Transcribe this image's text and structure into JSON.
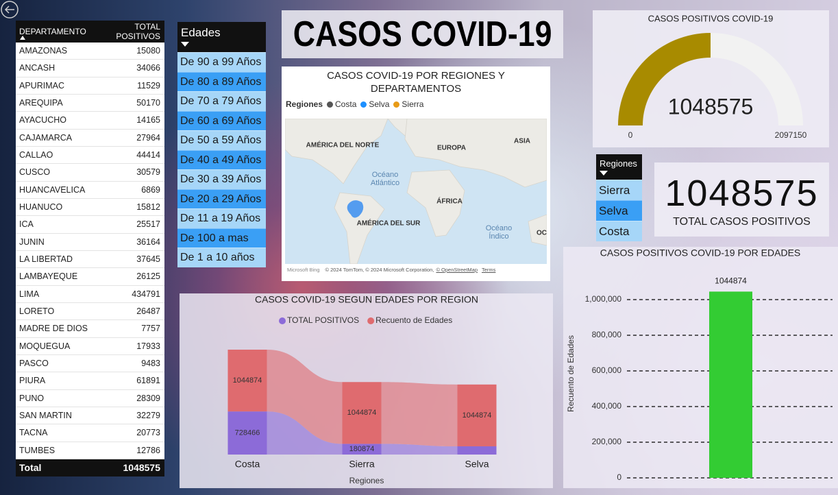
{
  "title": "CASOS COVID-19",
  "table": {
    "columns": [
      "DEPARTAMENTO",
      "TOTAL POSITIVOS"
    ],
    "rows": [
      [
        "AMAZONAS",
        15080
      ],
      [
        "ANCASH",
        34066
      ],
      [
        "APURIMAC",
        11529
      ],
      [
        "AREQUIPA",
        50170
      ],
      [
        "AYACUCHO",
        14165
      ],
      [
        "CAJAMARCA",
        27964
      ],
      [
        "CALLAO",
        44414
      ],
      [
        "CUSCO",
        30579
      ],
      [
        "HUANCAVELICA",
        6869
      ],
      [
        "HUANUCO",
        15812
      ],
      [
        "ICA",
        25517
      ],
      [
        "JUNIN",
        36164
      ],
      [
        "LA LIBERTAD",
        37645
      ],
      [
        "LAMBAYEQUE",
        26125
      ],
      [
        "LIMA",
        434791
      ],
      [
        "LORETO",
        26487
      ],
      [
        "MADRE DE DIOS",
        7757
      ],
      [
        "MOQUEGUA",
        17933
      ],
      [
        "PASCO",
        9483
      ],
      [
        "PIURA",
        61891
      ],
      [
        "PUNO",
        28309
      ],
      [
        "SAN MARTIN",
        32279
      ],
      [
        "TACNA",
        20773
      ],
      [
        "TUMBES",
        12786
      ]
    ],
    "total": [
      "Total",
      1048575
    ]
  },
  "edades_slicer": {
    "title": "Edades",
    "items": [
      "De 90 a 99 Años",
      "De 80 a 89 Años",
      "De 70 a 79 Años",
      "De 60 a 69 Años",
      "De 50 a 59 Años",
      "De 40 a 49 Años",
      "De 30 a 39 Años",
      "De 20 a 29 Años",
      "De 11 a 19 Años",
      "De 100 a mas",
      "De 1 a 10 años"
    ],
    "selected": [
      false,
      true,
      false,
      true,
      false,
      true,
      false,
      true,
      false,
      true,
      false
    ]
  },
  "regiones_slicer": {
    "title": "Regiones",
    "items": [
      "Sierra",
      "Selva",
      "Costa"
    ],
    "selected": [
      false,
      true,
      false
    ]
  },
  "card": {
    "value": 1048575,
    "label": "TOTAL CASOS POSITIVOS"
  },
  "map": {
    "title": "CASOS COVID-19 POR REGIONES Y DEPARTAMENTOS",
    "legend_title": "Regiones",
    "legend": [
      {
        "name": "Costa",
        "color": "#555555"
      },
      {
        "name": "Selva",
        "color": "#1e90ff"
      },
      {
        "name": "Sierra",
        "color": "#e89b17"
      }
    ],
    "labels": [
      "AMÉRICA DEL NORTE",
      "EUROPA",
      "ASIA",
      [
        "Océano",
        "Atlántico"
      ],
      "ÁFRICA",
      "AMÉRICA DEL SUR",
      [
        "Océano",
        "Índico"
      ],
      "OC"
    ],
    "attribution": [
      "Microsoft Bing",
      "© 2024 TomTom, © 2024 Microsoft Corporation,",
      "© OpenStreetMap",
      "Terms"
    ]
  },
  "chart_data": [
    {
      "type": "gauge",
      "title": "CASOS POSITIVOS COVID-19",
      "value": 1048575,
      "min": 0,
      "max": 2097150,
      "color": "#a88b00"
    },
    {
      "type": "ribbon",
      "title": "CASOS COVID-19 SEGUN EDADES POR REGION",
      "categories": [
        "Costa",
        "Sierra",
        "Selva"
      ],
      "x_label": "Regiones",
      "series": [
        {
          "name": "TOTAL POSITIVOS",
          "color": "#8c6bd8",
          "values": [
            728466,
            180874,
            139235
          ],
          "value_labels": [
            "728466",
            "180874",
            null
          ]
        },
        {
          "name": "Recuento de Edades",
          "color": "#df6b6f",
          "values": [
            1044874,
            1044874,
            1044874
          ],
          "value_labels": [
            "1044874",
            "1044874",
            "1044874"
          ]
        }
      ]
    },
    {
      "type": "bar",
      "title": "CASOS POSITIVOS COVID-19 POR EDADES",
      "y_label": "Recuento de Edades",
      "categories": [
        null
      ],
      "values": [
        1044874
      ],
      "color": "#33cc33",
      "ylim": [
        0,
        1100000
      ],
      "yticks": [
        0,
        {
          "value": 200000,
          "label": "200,000"
        },
        {
          "value": 400000,
          "label": "400,000"
        },
        {
          "value": 600000,
          "label": "600,000"
        },
        {
          "value": 800000,
          "label": "800,000"
        },
        {
          "value": 1000000,
          "label": "1,000,000"
        }
      ],
      "grid": true
    }
  ]
}
